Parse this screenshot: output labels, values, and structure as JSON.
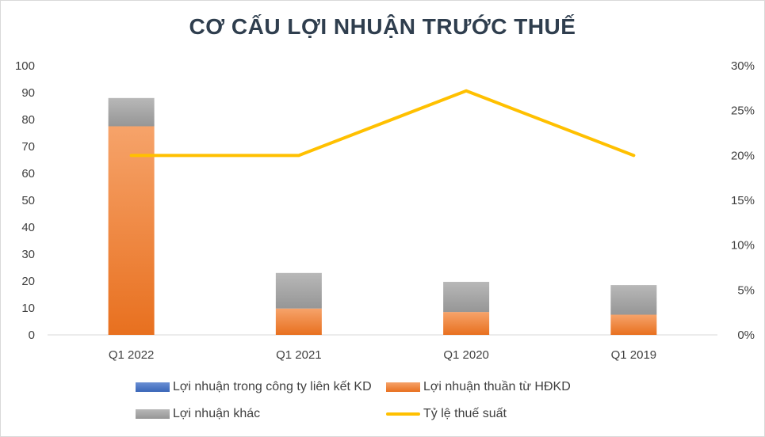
{
  "chart_data": {
    "type": "bar",
    "stacked": true,
    "title": "CƠ CẤU LỢI NHUẬN TRƯỚC THUẾ",
    "categories": [
      "Q1 2022",
      "Q1 2021",
      "Q1 2020",
      "Q1 2019"
    ],
    "series": [
      {
        "name": "Lợi nhuận trong công ty liên kết KD",
        "type": "bar",
        "axis": "left",
        "color": "#4472c4",
        "values": [
          0,
          0,
          0,
          0
        ]
      },
      {
        "name": "Lợi nhuận thuần từ HĐKD",
        "type": "bar",
        "axis": "left",
        "color": "#f28131",
        "values": [
          77.5,
          9.8,
          8.5,
          7.5
        ]
      },
      {
        "name": "Lợi nhuận khác",
        "type": "bar",
        "axis": "left",
        "color": "#a5a5a5",
        "values": [
          10.5,
          13.2,
          11.2,
          11
        ]
      },
      {
        "name": "Tỷ lệ thuế suất",
        "type": "line",
        "axis": "right",
        "color": "#ffc000",
        "values": [
          20,
          20,
          27.2,
          20
        ]
      }
    ],
    "y_left": {
      "min": 0,
      "max": 100,
      "ticks": [
        "0",
        "10",
        "20",
        "30",
        "40",
        "50",
        "60",
        "70",
        "80",
        "90",
        "100"
      ]
    },
    "y_right": {
      "min": 0,
      "max": 30,
      "ticks": [
        "0%",
        "5%",
        "10%",
        "15%",
        "20%",
        "25%",
        "30%"
      ]
    },
    "grid": false,
    "legend_position": "bottom"
  }
}
